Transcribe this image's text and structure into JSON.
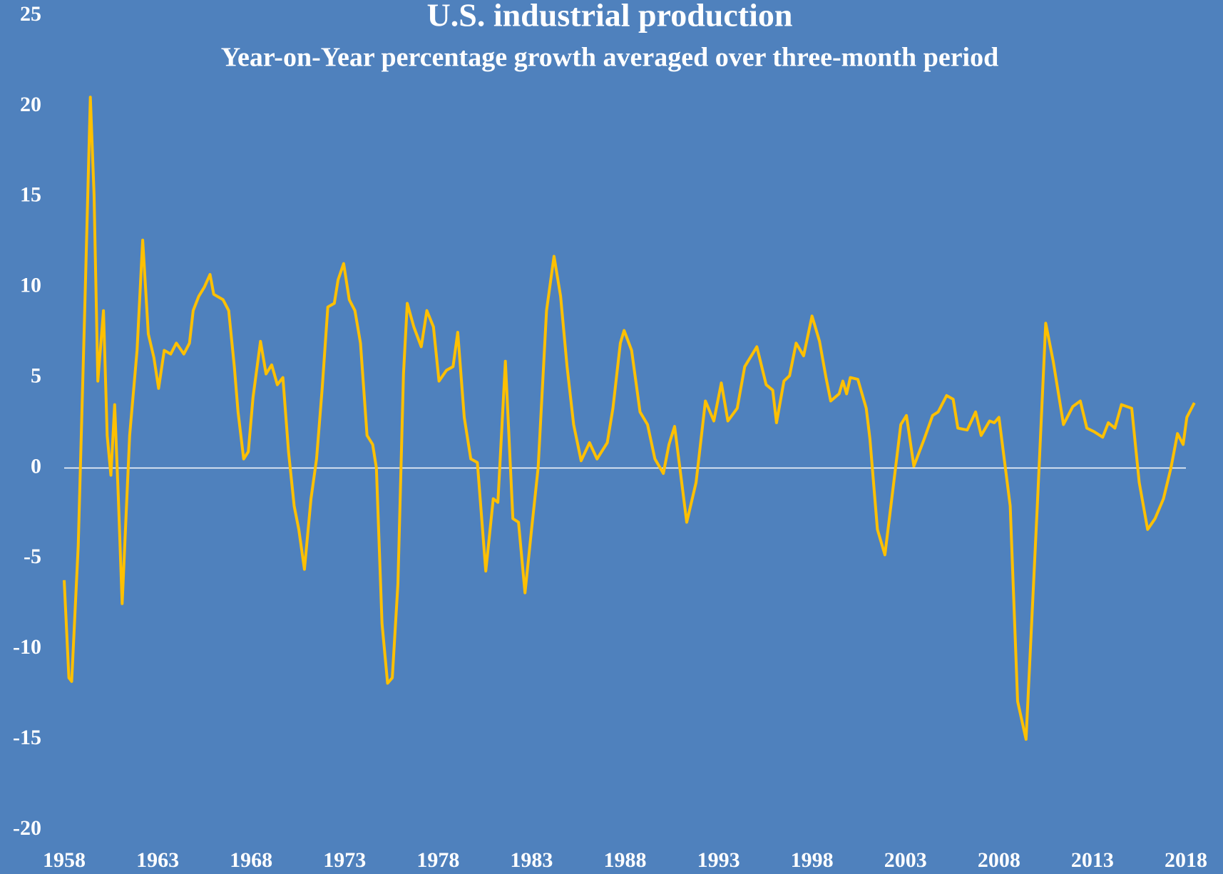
{
  "chart_data": {
    "type": "line",
    "title": "U.S. industrial production",
    "subtitle": "Year-on-Year percentage growth averaged over three-month period",
    "series": [
      {
        "color": "#ffc000",
        "x": [
          1958.0,
          1958.25,
          1958.4,
          1958.75,
          1959.1,
          1959.4,
          1959.6,
          1959.8,
          1960.1,
          1960.3,
          1960.5,
          1960.7,
          1960.9,
          1961.1,
          1961.5,
          1961.9,
          1962.2,
          1962.5,
          1962.8,
          1963.05,
          1963.35,
          1963.7,
          1964.0,
          1964.4,
          1964.7,
          1964.9,
          1965.2,
          1965.5,
          1965.8,
          1966.0,
          1966.5,
          1966.8,
          1967.1,
          1967.3,
          1967.6,
          1967.85,
          1968.1,
          1968.5,
          1968.8,
          1969.1,
          1969.4,
          1969.7,
          1970.0,
          1970.3,
          1970.55,
          1970.85,
          1971.2,
          1971.5,
          1971.8,
          1972.1,
          1972.45,
          1972.65,
          1972.95,
          1973.25,
          1973.55,
          1973.85,
          1974.2,
          1974.5,
          1974.7,
          1975.0,
          1975.3,
          1975.55,
          1975.85,
          1976.15,
          1976.35,
          1976.7,
          1977.1,
          1977.4,
          1977.75,
          1978.05,
          1978.45,
          1978.8,
          1979.05,
          1979.4,
          1979.75,
          1980.1,
          1980.55,
          1980.95,
          1981.2,
          1981.6,
          1982.0,
          1982.3,
          1982.65,
          1983.0,
          1983.35,
          1983.8,
          1984.2,
          1984.55,
          1984.9,
          1985.25,
          1985.65,
          1986.1,
          1986.5,
          1987.05,
          1987.35,
          1987.75,
          1987.95,
          1988.35,
          1988.8,
          1989.2,
          1989.6,
          1990.05,
          1990.35,
          1990.65,
          1991.3,
          1991.8,
          1992.3,
          1992.75,
          1993.15,
          1993.5,
          1994.0,
          1994.4,
          1995.05,
          1995.55,
          1995.9,
          1996.1,
          1996.5,
          1996.8,
          1997.15,
          1997.55,
          1998.0,
          1998.4,
          1998.75,
          1999.0,
          1999.45,
          1999.65,
          1999.85,
          2000.05,
          2000.45,
          2000.9,
          2001.1,
          2001.5,
          2001.9,
          2002.35,
          2002.75,
          2003.05,
          2003.45,
          2004.0,
          2004.45,
          2004.75,
          2005.2,
          2005.55,
          2005.8,
          2006.3,
          2006.75,
          2007.05,
          2007.5,
          2007.75,
          2008.0,
          2008.6,
          2009.0,
          2009.45,
          2010.05,
          2010.5,
          2010.9,
          2011.45,
          2011.95,
          2012.35,
          2012.7,
          2013.1,
          2013.55,
          2013.85,
          2014.2,
          2014.55,
          2015.1,
          2015.5,
          2015.95,
          2016.35,
          2016.8,
          2017.2,
          2017.55,
          2017.85,
          2018.05,
          2018.45
        ],
        "values": [
          -6.2,
          -11.6,
          -11.8,
          -4.3,
          8.7,
          20.5,
          15.1,
          4.8,
          8.7,
          1.8,
          -0.4,
          3.5,
          -1.7,
          -7.5,
          1.8,
          6.5,
          12.6,
          7.4,
          6.1,
          4.4,
          6.5,
          6.3,
          6.9,
          6.3,
          6.9,
          8.7,
          9.5,
          10.0,
          10.7,
          9.6,
          9.3,
          8.7,
          5.6,
          3.1,
          0.5,
          0.9,
          3.9,
          7.0,
          5.2,
          5.7,
          4.6,
          5.0,
          0.9,
          -2.1,
          -3.4,
          -5.6,
          -1.7,
          0.5,
          4.4,
          8.9,
          9.1,
          10.4,
          11.3,
          9.3,
          8.7,
          6.9,
          1.8,
          1.3,
          0.0,
          -8.6,
          -11.9,
          -11.6,
          -6.4,
          5.2,
          9.1,
          7.8,
          6.7,
          8.7,
          7.8,
          4.8,
          5.4,
          5.6,
          7.5,
          2.8,
          0.5,
          0.3,
          -5.7,
          -1.7,
          -1.9,
          5.9,
          -2.8,
          -3.0,
          -6.9,
          -3.4,
          0.0,
          8.7,
          11.7,
          9.5,
          5.6,
          2.4,
          0.4,
          1.4,
          0.5,
          1.4,
          3.3,
          6.9,
          7.6,
          6.5,
          3.1,
          2.4,
          0.5,
          -0.3,
          1.3,
          2.3,
          -3.0,
          -0.8,
          3.7,
          2.6,
          4.7,
          2.6,
          3.3,
          5.6,
          6.7,
          4.6,
          4.3,
          2.5,
          4.8,
          5.1,
          6.9,
          6.2,
          8.4,
          7.0,
          5.0,
          3.7,
          4.1,
          4.8,
          4.1,
          5.0,
          4.9,
          3.3,
          1.6,
          -3.4,
          -4.8,
          -1.0,
          2.4,
          2.9,
          0.1,
          1.6,
          2.9,
          3.1,
          4.0,
          3.8,
          2.2,
          2.1,
          3.1,
          1.8,
          2.6,
          2.5,
          2.8,
          -2.1,
          -12.9,
          -15.0,
          -2.1,
          8.0,
          5.9,
          2.4,
          3.4,
          3.7,
          2.2,
          2.0,
          1.7,
          2.5,
          2.2,
          3.5,
          3.3,
          -0.8,
          -3.4,
          -2.8,
          -1.7,
          0.0,
          1.9,
          1.3,
          2.8,
          3.6
        ]
      }
    ],
    "xlim": [
      1958,
      2018
    ],
    "xticks": [
      1958,
      1963,
      1968,
      1973,
      1978,
      1983,
      1988,
      1993,
      1998,
      2003,
      2008,
      2013,
      2018
    ],
    "ylim": [
      -20,
      25
    ],
    "yticks": [
      -20,
      -15,
      -10,
      -5,
      0,
      5,
      10,
      15,
      20,
      25
    ],
    "background": "#4f81bd"
  }
}
